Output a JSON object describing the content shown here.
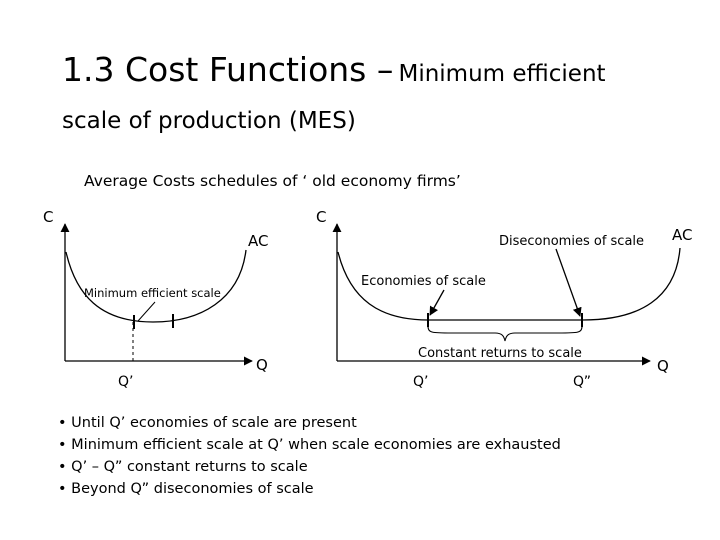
{
  "title": {
    "main": "1.3 Cost Functions –",
    "sub_part1": "Minimum efficient",
    "sub_part2": "scale of production (MES)"
  },
  "subtitle": "Average Costs schedules of ‘ old economy firms’",
  "left_chart": {
    "y_label": "C",
    "x_label": "Q",
    "curve_label": "AC",
    "annotation": "Minimum efficient scale",
    "tick_label": "Q’"
  },
  "right_chart": {
    "y_label": "C",
    "x_label": "Q",
    "curve_label": "AC",
    "annotation_economies": "Economies of scale",
    "annotation_diseconomies": "Diseconomies of scale",
    "annotation_constant": "Constant returns to scale",
    "tick_label_1": "Q’",
    "tick_label_2": "Q”"
  },
  "bullets": [
    "Until Q’ economies of scale are present",
    "Minimum efficient scale at Q’ when scale economies are exhausted",
    "Q’ – Q” constant returns to scale",
    "Beyond Q” diseconomies of scale"
  ]
}
